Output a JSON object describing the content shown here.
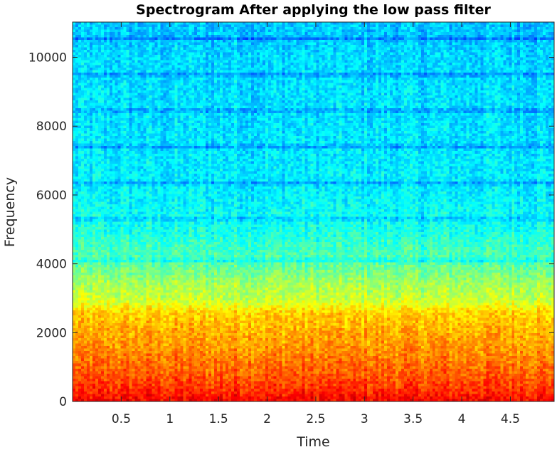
{
  "chart_data": {
    "type": "heatmap",
    "title": "Spectrogram After applying the low pass filter",
    "xlabel": "Time",
    "ylabel": "Frequency",
    "xlim": [
      0.0,
      4.95
    ],
    "ylim": [
      0,
      11025
    ],
    "xticks": [
      0.5,
      1,
      1.5,
      2,
      2.5,
      3,
      3.5,
      4,
      4.5
    ],
    "xtick_labels": [
      "0.5",
      "1",
      "1.5",
      "2",
      "2.5",
      "3",
      "3.5",
      "4",
      "4.5"
    ],
    "yticks": [
      0,
      2000,
      4000,
      6000,
      8000,
      10000
    ],
    "ytick_labels": [
      "0",
      "2000",
      "4000",
      "6000",
      "8000",
      "10000"
    ],
    "colormap": "jet",
    "colormap_stops": [
      "#00008f",
      "#0000ff",
      "#00ffff",
      "#ffff00",
      "#ff0000",
      "#800000"
    ],
    "frequency_profile": {
      "freq": [
        0,
        300,
        800,
        1500,
        2200,
        2600,
        2800,
        3000,
        3500,
        4000,
        4500,
        5000,
        6000,
        7000,
        8000,
        9000,
        10000,
        11025
      ],
      "level": [
        0.88,
        0.83,
        0.78,
        0.73,
        0.69,
        0.66,
        0.6,
        0.56,
        0.52,
        0.45,
        0.42,
        0.38,
        0.35,
        0.34,
        0.33,
        0.33,
        0.32,
        0.3
      ]
    },
    "dark_horizontal_bands": [
      4100,
      5300,
      6350,
      7400,
      8450,
      9500,
      10550
    ],
    "grid": false
  }
}
